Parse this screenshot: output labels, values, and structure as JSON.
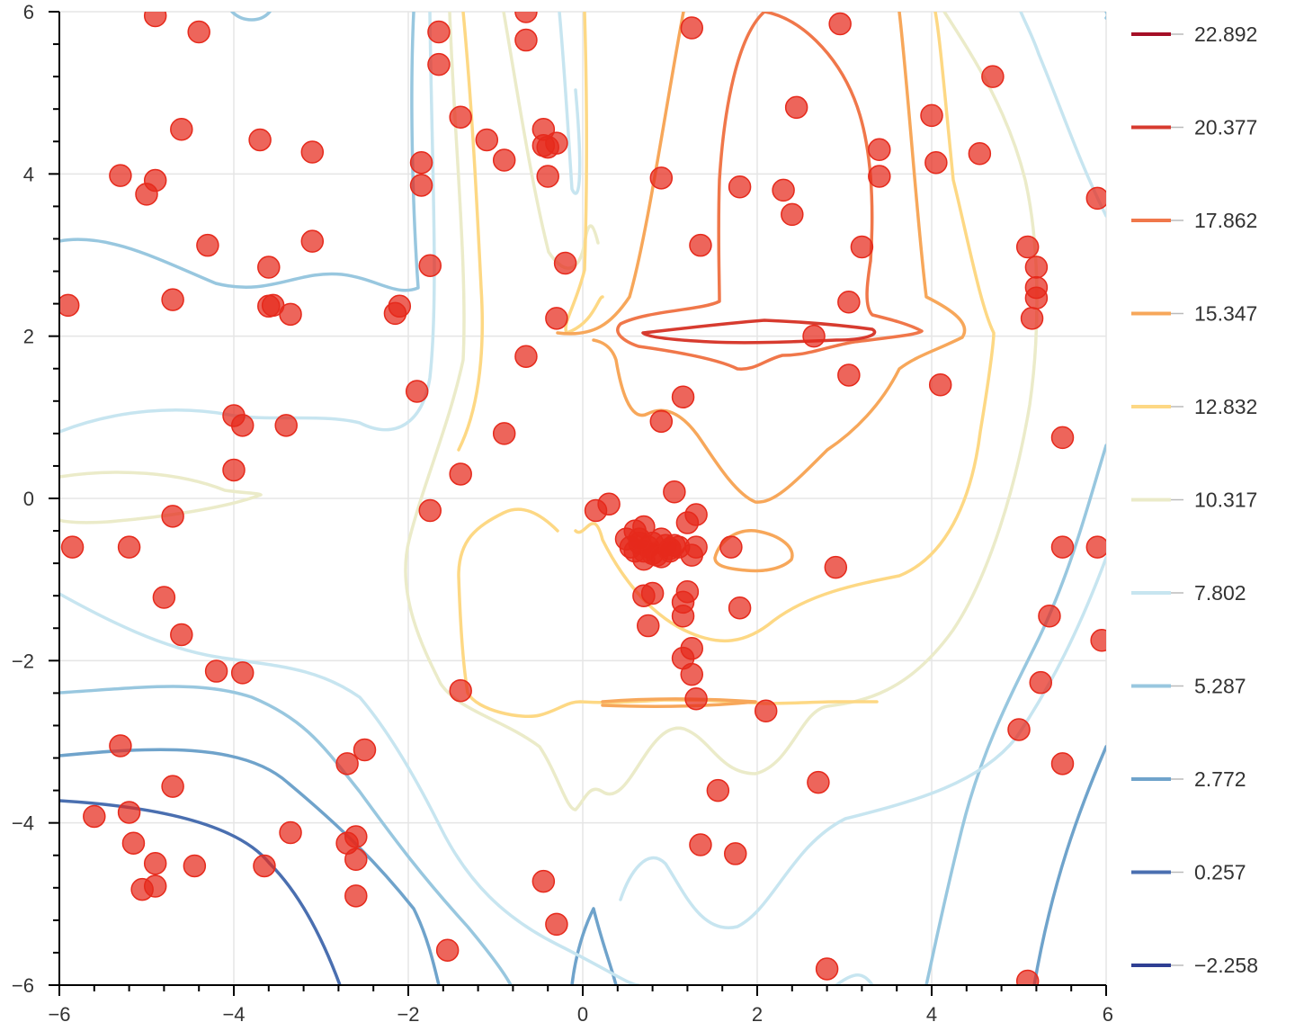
{
  "chart_data": {
    "type": "contour",
    "title": "",
    "xlabel": "",
    "ylabel": "",
    "xlim": [
      -6,
      6
    ],
    "ylim": [
      -6,
      6
    ],
    "grid": true,
    "x_ticks": [
      -6,
      -4,
      -2,
      0,
      2,
      4,
      6
    ],
    "y_ticks": [
      -6,
      -4,
      -2,
      0,
      2,
      4,
      6
    ],
    "legend_position": "right",
    "contour_levels": [
      {
        "label": "22.892",
        "color": "#a50f26"
      },
      {
        "label": "20.377",
        "color": "#d73b2f"
      },
      {
        "label": "17.862",
        "color": "#f0774a"
      },
      {
        "label": "15.347",
        "color": "#f7a75a"
      },
      {
        "label": "12.832",
        "color": "#fdd884"
      },
      {
        "label": "10.317",
        "color": "#ebebc9"
      },
      {
        "label": "7.802",
        "color": "#c7e5f0"
      },
      {
        "label": "5.287",
        "color": "#98c7df"
      },
      {
        "label": "2.772",
        "color": "#6fa3cb"
      },
      {
        "label": "0.257",
        "color": "#4a6fb0"
      },
      {
        "label": "−2.258",
        "color": "#2f3f93"
      }
    ],
    "scatter": {
      "color": "#e62a1c",
      "points": [
        [
          -4.9,
          5.95
        ],
        [
          -4.4,
          5.75
        ],
        [
          -4.6,
          4.55
        ],
        [
          -3.7,
          4.42
        ],
        [
          -3.1,
          4.27
        ],
        [
          -5.3,
          3.98
        ],
        [
          -4.9,
          3.92
        ],
        [
          -5.0,
          3.75
        ],
        [
          -4.3,
          3.12
        ],
        [
          -3.1,
          3.17
        ],
        [
          -3.6,
          2.85
        ],
        [
          -4.7,
          2.45
        ],
        [
          -5.9,
          2.38
        ],
        [
          -3.55,
          2.38
        ],
        [
          -3.6,
          2.37
        ],
        [
          -3.35,
          2.27
        ],
        [
          -2.1,
          2.37
        ],
        [
          -2.15,
          2.28
        ],
        [
          -1.85,
          4.14
        ],
        [
          -1.85,
          3.86
        ],
        [
          -1.65,
          5.75
        ],
        [
          -1.65,
          5.35
        ],
        [
          -1.75,
          2.87
        ],
        [
          -1.4,
          4.7
        ],
        [
          -1.1,
          4.42
        ],
        [
          -0.9,
          4.17
        ],
        [
          -0.65,
          5.65
        ],
        [
          -0.65,
          6.0
        ],
        [
          -0.45,
          4.55
        ],
        [
          -0.45,
          4.35
        ],
        [
          -0.4,
          4.33
        ],
        [
          -0.3,
          4.38
        ],
        [
          -0.4,
          3.97
        ],
        [
          -0.2,
          2.9
        ],
        [
          -0.3,
          2.22
        ],
        [
          -0.65,
          1.75
        ],
        [
          -1.9,
          1.32
        ],
        [
          -4.0,
          1.02
        ],
        [
          -3.9,
          0.9
        ],
        [
          -3.4,
          0.9
        ],
        [
          -4.0,
          0.35
        ],
        [
          -0.9,
          0.8
        ],
        [
          -1.4,
          0.3
        ],
        [
          -4.7,
          -0.22
        ],
        [
          -5.85,
          -0.6
        ],
        [
          -5.2,
          -0.6
        ],
        [
          -1.75,
          -0.15
        ],
        [
          -4.8,
          -1.22
        ],
        [
          -4.6,
          -1.68
        ],
        [
          -4.2,
          -2.13
        ],
        [
          -3.9,
          -2.15
        ],
        [
          -1.4,
          -2.37
        ],
        [
          -5.3,
          -3.05
        ],
        [
          -4.7,
          -3.55
        ],
        [
          -5.6,
          -3.92
        ],
        [
          -5.2,
          -3.87
        ],
        [
          -5.15,
          -4.25
        ],
        [
          -4.9,
          -4.5
        ],
        [
          -4.9,
          -4.78
        ],
        [
          -5.05,
          -4.82
        ],
        [
          -4.45,
          -4.53
        ],
        [
          -3.65,
          -4.53
        ],
        [
          -3.35,
          -4.12
        ],
        [
          -2.7,
          -3.27
        ],
        [
          -2.5,
          -3.1
        ],
        [
          -2.7,
          -4.25
        ],
        [
          -2.6,
          -4.17
        ],
        [
          -2.6,
          -4.45
        ],
        [
          -2.6,
          -4.9
        ],
        [
          -0.45,
          -4.72
        ],
        [
          -1.55,
          -5.57
        ],
        [
          -0.3,
          -5.25
        ],
        [
          0.15,
          -0.15
        ],
        [
          0.3,
          -0.07
        ],
        [
          0.5,
          -0.5
        ],
        [
          0.55,
          -0.6
        ],
        [
          0.6,
          -0.4
        ],
        [
          0.65,
          -0.55
        ],
        [
          0.7,
          -0.35
        ],
        [
          0.7,
          -0.65
        ],
        [
          0.75,
          -0.6
        ],
        [
          0.8,
          -0.55
        ],
        [
          0.85,
          -0.7
        ],
        [
          0.9,
          -0.5
        ],
        [
          0.95,
          -0.58
        ],
        [
          1.0,
          -0.62
        ],
        [
          1.05,
          -0.58
        ],
        [
          1.1,
          -0.6
        ],
        [
          0.6,
          -0.65
        ],
        [
          0.7,
          -0.75
        ],
        [
          0.8,
          -0.68
        ],
        [
          0.9,
          -0.72
        ],
        [
          1.0,
          -0.65
        ],
        [
          0.65,
          -0.5
        ],
        [
          1.2,
          -0.3
        ],
        [
          1.3,
          -0.2
        ],
        [
          1.3,
          -0.6
        ],
        [
          1.25,
          -0.7
        ],
        [
          0.7,
          -1.2
        ],
        [
          0.8,
          -1.17
        ],
        [
          0.75,
          -1.57
        ],
        [
          1.15,
          -1.28
        ],
        [
          1.2,
          -1.15
        ],
        [
          1.15,
          -1.45
        ],
        [
          1.25,
          -1.85
        ],
        [
          1.15,
          -1.97
        ],
        [
          1.25,
          -2.17
        ],
        [
          1.3,
          -2.47
        ],
        [
          1.05,
          0.08
        ],
        [
          1.15,
          1.25
        ],
        [
          0.9,
          0.95
        ],
        [
          1.7,
          -0.6
        ],
        [
          1.8,
          -1.35
        ],
        [
          2.1,
          -2.62
        ],
        [
          1.55,
          -3.6
        ],
        [
          1.35,
          -4.27
        ],
        [
          1.75,
          -4.38
        ],
        [
          2.7,
          -3.5
        ],
        [
          2.9,
          -0.85
        ],
        [
          2.65,
          2.0
        ],
        [
          3.05,
          2.42
        ],
        [
          3.05,
          1.52
        ],
        [
          3.2,
          3.1
        ],
        [
          1.35,
          3.12
        ],
        [
          1.8,
          3.84
        ],
        [
          2.3,
          3.8
        ],
        [
          2.4,
          3.5
        ],
        [
          2.45,
          4.82
        ],
        [
          3.4,
          4.3
        ],
        [
          3.4,
          3.97
        ],
        [
          4.0,
          4.72
        ],
        [
          4.05,
          4.14
        ],
        [
          4.55,
          4.25
        ],
        [
          4.7,
          5.2
        ],
        [
          4.1,
          1.4
        ],
        [
          2.95,
          5.85
        ],
        [
          1.25,
          5.8
        ],
        [
          0.9,
          3.95
        ],
        [
          5.1,
          3.1
        ],
        [
          5.2,
          2.85
        ],
        [
          5.2,
          2.6
        ],
        [
          5.2,
          2.47
        ],
        [
          5.15,
          2.22
        ],
        [
          5.9,
          3.7
        ],
        [
          5.5,
          0.75
        ],
        [
          5.5,
          -0.6
        ],
        [
          5.9,
          -0.6
        ],
        [
          5.95,
          -1.75
        ],
        [
          5.35,
          -1.45
        ],
        [
          5.25,
          -2.27
        ],
        [
          5.0,
          -2.85
        ],
        [
          5.5,
          -3.27
        ],
        [
          2.8,
          -5.8
        ],
        [
          5.1,
          -5.95
        ]
      ]
    }
  }
}
